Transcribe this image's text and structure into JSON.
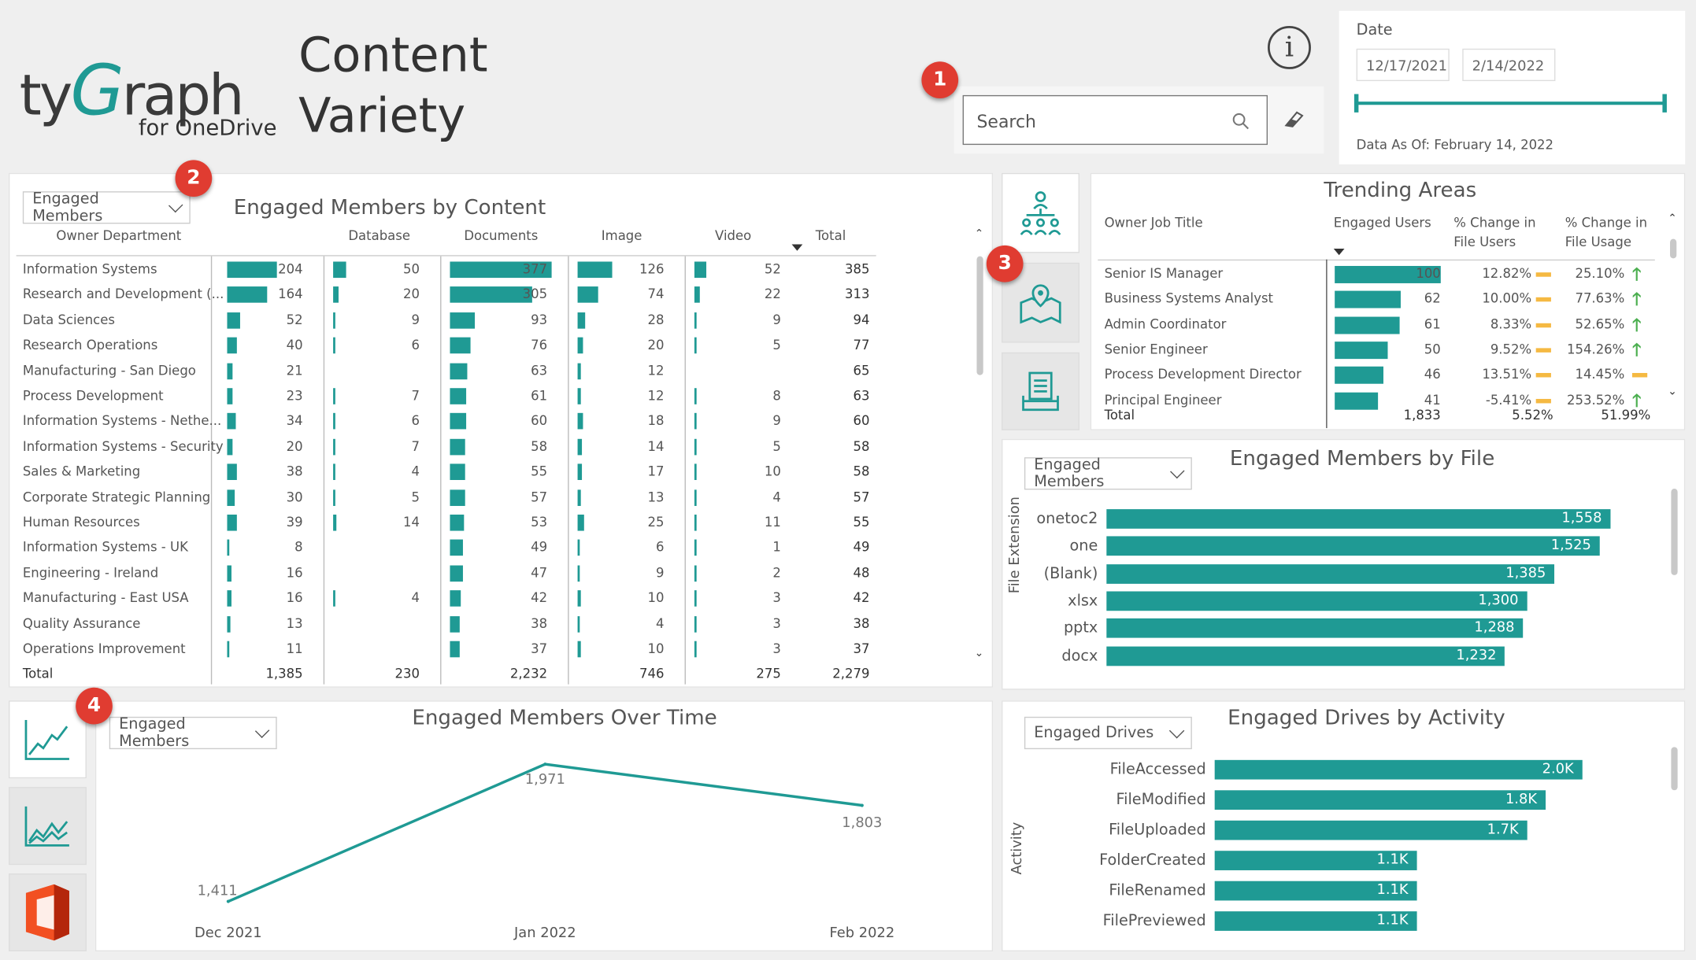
{
  "header": {
    "logo_ty": "ty",
    "logo_g": "G",
    "logo_raph": "raph",
    "logo_sub": "for OneDrive",
    "title_line1": "Content",
    "title_line2": "Variety"
  },
  "info_icon": "info-icon",
  "search": {
    "placeholder": "Search"
  },
  "date_filter": {
    "label": "Date",
    "start": "12/17/2021",
    "end": "2/14/2022",
    "data_as_of": "Data As Of: February 14, 2022"
  },
  "badges": [
    "1",
    "2",
    "3",
    "4"
  ],
  "content_matrix": {
    "title": "Engaged Members by Content",
    "dropdown": "Engaged Members",
    "columns": [
      "Owner Department",
      "Database",
      "Documents",
      "Image",
      "Video",
      "Total"
    ],
    "rows": [
      {
        "dept": "Information Systems",
        "members": "204",
        "database": "50",
        "documents": "377",
        "image": "126",
        "video": "52",
        "total": "385"
      },
      {
        "dept": "Research and Development (...",
        "members": "164",
        "database": "20",
        "documents": "305",
        "image": "74",
        "video": "22",
        "total": "313"
      },
      {
        "dept": "Data Sciences",
        "members": "52",
        "database": "9",
        "documents": "93",
        "image": "28",
        "video": "9",
        "total": "94"
      },
      {
        "dept": "Research Operations",
        "members": "40",
        "database": "6",
        "documents": "76",
        "image": "20",
        "video": "5",
        "total": "77"
      },
      {
        "dept": "Manufacturing - San Diego",
        "members": "21",
        "database": "",
        "documents": "63",
        "image": "12",
        "video": "",
        "total": "65"
      },
      {
        "dept": "Process Development",
        "members": "23",
        "database": "7",
        "documents": "61",
        "image": "12",
        "video": "8",
        "total": "63"
      },
      {
        "dept": "Information Systems - Nethe...",
        "members": "34",
        "database": "6",
        "documents": "60",
        "image": "18",
        "video": "9",
        "total": "60"
      },
      {
        "dept": "Information Systems - Security",
        "members": "20",
        "database": "7",
        "documents": "58",
        "image": "14",
        "video": "5",
        "total": "58"
      },
      {
        "dept": "Sales & Marketing",
        "members": "38",
        "database": "4",
        "documents": "55",
        "image": "17",
        "video": "10",
        "total": "58"
      },
      {
        "dept": "Corporate Strategic Planning",
        "members": "30",
        "database": "5",
        "documents": "57",
        "image": "13",
        "video": "4",
        "total": "57"
      },
      {
        "dept": "Human Resources",
        "members": "39",
        "database": "14",
        "documents": "53",
        "image": "25",
        "video": "11",
        "total": "55"
      },
      {
        "dept": "Information Systems - UK",
        "members": "8",
        "database": "",
        "documents": "49",
        "image": "6",
        "video": "1",
        "total": "49"
      },
      {
        "dept": "Engineering - Ireland",
        "members": "16",
        "database": "",
        "documents": "47",
        "image": "9",
        "video": "2",
        "total": "48"
      },
      {
        "dept": "Manufacturing - East USA",
        "members": "16",
        "database": "4",
        "documents": "42",
        "image": "10",
        "video": "3",
        "total": "42"
      },
      {
        "dept": "Quality Assurance",
        "members": "13",
        "database": "",
        "documents": "38",
        "image": "4",
        "video": "3",
        "total": "38"
      },
      {
        "dept": "Operations Improvement",
        "members": "11",
        "database": "",
        "documents": "37",
        "image": "10",
        "video": "3",
        "total": "37"
      }
    ],
    "totals": {
      "label": "Total",
      "members": "1,385",
      "database": "230",
      "documents": "2,232",
      "image": "746",
      "video": "275",
      "total": "2,279"
    }
  },
  "trending": {
    "title": "Trending Areas",
    "columns": [
      "Owner Job Title",
      "Engaged Users",
      "% Change in File Users",
      "% Change in File Usage"
    ],
    "rows": [
      {
        "title": "Senior IS Manager",
        "users": "100",
        "chg_users": "12.82%",
        "chg_usage": "25.10%",
        "trend": "up"
      },
      {
        "title": "Business Systems Analyst",
        "users": "62",
        "chg_users": "10.00%",
        "chg_usage": "77.63%",
        "trend": "up"
      },
      {
        "title": "Admin Coordinator",
        "users": "61",
        "chg_users": "8.33%",
        "chg_usage": "52.65%",
        "trend": "up"
      },
      {
        "title": "Senior Engineer",
        "users": "50",
        "chg_users": "9.52%",
        "chg_usage": "154.26%",
        "trend": "up"
      },
      {
        "title": "Process Development Director",
        "users": "46",
        "chg_users": "13.51%",
        "chg_usage": "14.45%",
        "trend": "flat"
      },
      {
        "title": "Principal Engineer",
        "users": "41",
        "chg_users": "-5.41%",
        "chg_usage": "253.52%",
        "trend": "up"
      }
    ],
    "totals": {
      "label": "Total",
      "users": "1,833",
      "chg_users": "5.52%",
      "chg_usage": "51.99%"
    },
    "side_icons": [
      "org-chart-icon",
      "map-pin-icon",
      "document-tray-icon"
    ]
  },
  "chart_data": [
    {
      "type": "bar",
      "title": "Engaged Members by File",
      "dropdown": "Engaged Members",
      "ylabel": "File Extension",
      "categories": [
        "onetoc2",
        "one",
        "(Blank)",
        "xlsx",
        "pptx",
        "docx"
      ],
      "values": [
        1558,
        1525,
        1385,
        1300,
        1288,
        1232
      ],
      "labels": [
        "1,558",
        "1,525",
        "1,385",
        "1,300",
        "1,288",
        "1,232"
      ]
    },
    {
      "type": "line",
      "title": "Engaged Members Over Time",
      "dropdown": "Engaged Members",
      "x": [
        "Dec 2021",
        "Jan 2022",
        "Feb 2022"
      ],
      "values": [
        1411,
        1971,
        1803
      ],
      "labels": [
        "1,411",
        "1,971",
        "1,803"
      ]
    },
    {
      "type": "bar",
      "title": "Engaged Drives by Activity",
      "dropdown": "Engaged Drives",
      "ylabel": "Activity",
      "categories": [
        "FileAccessed",
        "FileModified",
        "FileUploaded",
        "FolderCreated",
        "FileRenamed",
        "FilePreviewed"
      ],
      "values": [
        2000,
        1800,
        1700,
        1100,
        1100,
        1100
      ],
      "labels": [
        "2.0K",
        "1.8K",
        "1.7K",
        "1.1K",
        "1.1K",
        "1.1K"
      ]
    }
  ],
  "left_tiles": [
    "line-chart-icon",
    "area-chart-icon",
    "office-logo-icon"
  ],
  "colors": {
    "teal": "#1f9a94",
    "badge": "#e03c31",
    "up_arrow": "#4caf50",
    "flat": "#f5b942"
  }
}
